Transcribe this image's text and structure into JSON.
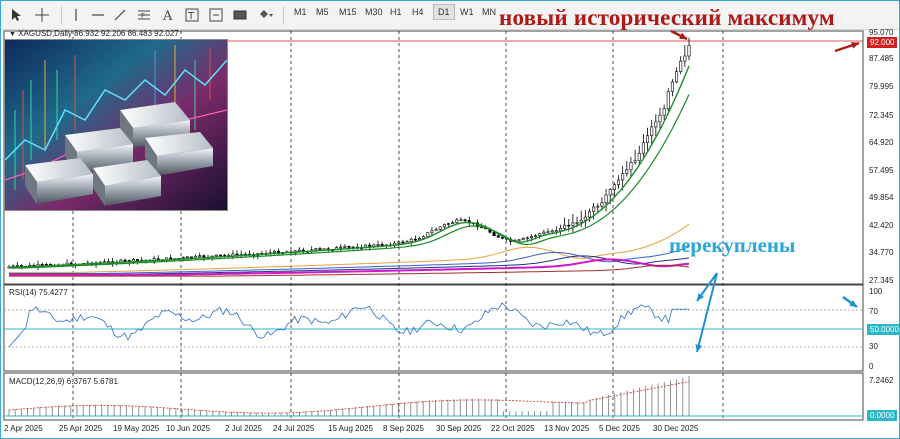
{
  "toolbar": {
    "timeframes": [
      "M1",
      "M5",
      "M15",
      "M30",
      "H1",
      "H4",
      "D1",
      "W1",
      "MN"
    ],
    "active_timeframe": "D1"
  },
  "headline": "новый исторический максимум",
  "overlay_label": "перекуплены",
  "main_chart": {
    "symbol_info": "XAGUSD,Daily  86.932 92.206 86.483 92.027",
    "price_axis": [
      "95.070",
      "87.485",
      "79.995",
      "72.345",
      "64.920",
      "57.495",
      "49.854",
      "42.420",
      "34.770",
      "27.345"
    ],
    "current_price": "92.000",
    "colors": {
      "candles": "#000000",
      "ma_green": "#1e8a2a",
      "ma_orange": "#e8a23a",
      "ma_blue": "#3a5fc8",
      "ma_navy": "#23308a",
      "ma_magenta": "#d018c8",
      "ma_brown": "#a0302a"
    }
  },
  "rsi": {
    "label": "RSI(14) 75.4277",
    "axis": [
      "100",
      "70",
      "50.0000",
      "30",
      "0"
    ]
  },
  "macd": {
    "label": "MACD(12,26,9) 6.3767 5.6781",
    "axis": [
      "7.2462",
      "0.0000"
    ]
  },
  "date_axis": [
    "2 Apr 2025",
    "25 Apr 2025",
    "19 May 2025",
    "10 Jun 2025",
    "2 Jul 2025",
    "24 Jul 2025",
    "15 Aug 2025",
    "8 Sep 2025",
    "30 Sep 2025",
    "22 Oct 2025",
    "13 Nov 2025",
    "5 Dec 2025",
    "30 Dec 2025"
  ]
}
